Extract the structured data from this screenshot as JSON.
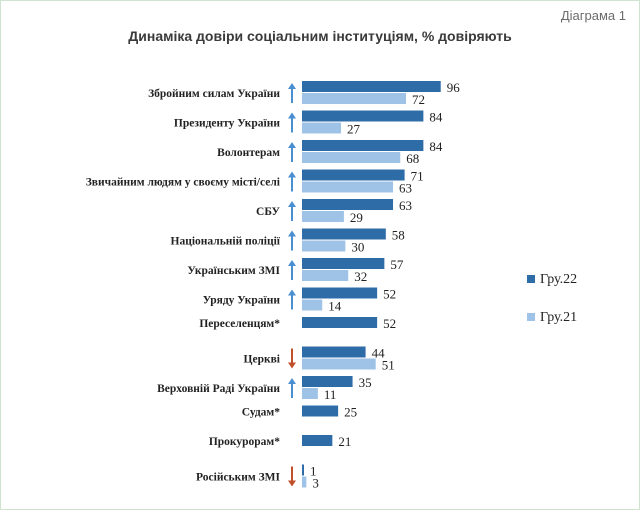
{
  "diagram_label": "Діаграма 1",
  "colors": {
    "series_2022": "#2e6ca8",
    "series_2021": "#9fc3e6",
    "arrow_up": "#4a8fd0",
    "arrow_down": "#c0502a"
  },
  "chart_data": {
    "type": "bar",
    "orientation": "horizontal",
    "title": "Динаміка довіри соціальним інституціям, % довіряють",
    "legend_position": "right",
    "categories": [
      "Збройним силам України",
      "Президенту України",
      "Волонтерам",
      "Звичайним людям у своєму місті/селі",
      "СБУ",
      "Національній поліції",
      "Українським ЗМІ",
      "Уряду України",
      "Переселенцям*",
      "Церкві",
      "Верховній Раді України",
      "Судам*",
      "Прокурорам*",
      "Російським ЗМІ"
    ],
    "series": [
      {
        "name": "Гру.22",
        "values": [
          96,
          84,
          84,
          71,
          63,
          58,
          57,
          52,
          52,
          44,
          35,
          25,
          21,
          1
        ]
      },
      {
        "name": "Гру.21",
        "values": [
          72,
          27,
          68,
          63,
          29,
          30,
          32,
          14,
          null,
          51,
          11,
          null,
          null,
          3
        ]
      }
    ],
    "trend": [
      "up",
      "up",
      "up",
      "up",
      "up",
      "up",
      "up",
      "up",
      null,
      "down",
      "up",
      null,
      null,
      "down"
    ],
    "xlim": [
      0,
      100
    ],
    "grid": false
  }
}
